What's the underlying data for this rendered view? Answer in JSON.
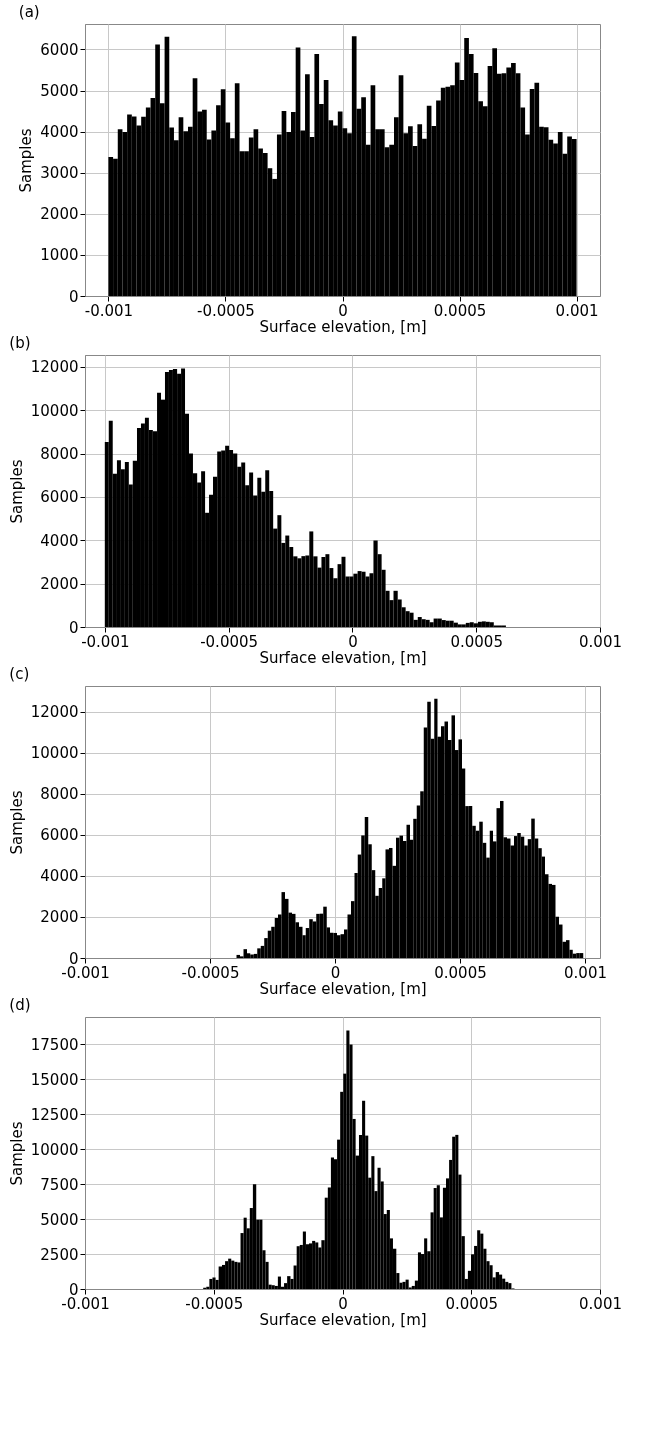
{
  "chart_data": [
    {
      "type": "histogram",
      "title": "(a)",
      "xlabel": "Surface elevation, [m]",
      "ylabel": "Samples",
      "color": "#000000",
      "grid": true,
      "xlim": [
        -0.0011,
        0.0011
      ],
      "xticks": [
        -0.001,
        -0.0005,
        0,
        0.0005,
        0.001
      ],
      "ylim": [
        0,
        6620
      ],
      "yticks": [
        0,
        1000,
        2000,
        3000,
        4000,
        5000,
        6000
      ],
      "bins": [
        -0.001,
        -0.00098,
        -0.00096,
        -0.00094,
        -0.00092,
        -0.0009,
        -0.00088,
        -0.00086,
        -0.00084,
        -0.00082,
        -0.0008,
        -0.00078,
        -0.00076,
        -0.00074,
        -0.00072,
        -0.0007,
        -0.00068,
        -0.00066,
        -0.00064,
        -0.00062,
        -0.0006,
        -0.00058,
        -0.00056,
        -0.00054,
        -0.00052,
        -0.0005,
        -0.00048,
        -0.00046,
        -0.00044,
        -0.00042,
        -0.0004,
        -0.00038,
        -0.00036,
        -0.00034,
        -0.00032,
        -0.0003,
        -0.00028,
        -0.00026,
        -0.00024,
        -0.00022,
        -0.0002,
        -0.00018,
        -0.00016,
        -0.00014,
        -0.00012,
        -0.0001,
        -8e-05,
        -6e-05,
        -4e-05,
        -2e-05,
        0,
        2e-05,
        4e-05,
        6e-05,
        8e-05,
        0.0001,
        0.00012,
        0.00014,
        0.00016,
        0.00018,
        0.0002,
        0.00022,
        0.00024,
        0.00026,
        0.00028,
        0.0003,
        0.00032,
        0.00034,
        0.00036,
        0.00038,
        0.0004,
        0.00042,
        0.00044,
        0.00046,
        0.00048,
        0.0005,
        0.00052,
        0.00054,
        0.00056,
        0.00058,
        0.0006,
        0.00062,
        0.00064,
        0.00066,
        0.00068,
        0.0007,
        0.00072,
        0.00074,
        0.00076,
        0.00078,
        0.0008,
        0.00082,
        0.00084,
        0.00086,
        0.00088,
        0.0009,
        0.00092,
        0.00094,
        0.00096,
        0.00098,
        0.001
      ],
      "values": [
        3380,
        3340,
        4060,
        3990,
        4420,
        4370,
        4150,
        4360,
        4590,
        4820,
        6120,
        4690,
        6310,
        4100,
        3790,
        4350,
        4010,
        4120,
        5300,
        4490,
        4530,
        3810,
        4030,
        4640,
        5030,
        4220,
        3840,
        5180,
        3520,
        3520,
        3860,
        4060,
        3590,
        3480,
        3110,
        2850,
        3930,
        4500,
        3990,
        4480,
        6050,
        4030,
        5400,
        3870,
        5890,
        4670,
        5260,
        4280,
        4150,
        4490,
        4080,
        3960,
        6320,
        4560,
        4840,
        3680,
        5130,
        4060,
        4060,
        3620,
        3680,
        4350,
        5370,
        3960,
        4130,
        3650,
        4180,
        3830,
        4630,
        4140,
        4760,
        5070,
        5090,
        5130,
        5680,
        5260,
        6280,
        5890,
        5430,
        4740,
        4620,
        5600,
        6030,
        5410,
        5420,
        5560,
        5670,
        5420,
        4590,
        3930,
        5040,
        5190,
        4120,
        4110,
        3800,
        3710,
        3990,
        3460,
        3880,
        3820
      ]
    },
    {
      "type": "histogram",
      "title": "(b)",
      "xlabel": "Surface elevation, [m]",
      "ylabel": "Samples",
      "color": "#000000",
      "grid": true,
      "xlim": [
        -0.00108,
        0.001
      ],
      "xticks": [
        -0.001,
        -0.0005,
        0,
        0.0005,
        0.001
      ],
      "ylim": [
        0,
        12550
      ],
      "yticks": [
        0,
        2000,
        4000,
        6000,
        8000,
        10000,
        12000
      ],
      "bins": [
        -0.001,
        -0.000984,
        -0.000968,
        -0.000951,
        -0.000935,
        -0.000919,
        -0.000903,
        -0.000887,
        -0.00087,
        -0.000854,
        -0.000838,
        -0.000822,
        -0.000806,
        -0.000789,
        -0.000773,
        -0.000757,
        -0.000741,
        -0.000725,
        -0.000708,
        -0.000692,
        -0.000676,
        -0.00066,
        -0.000644,
        -0.000627,
        -0.000611,
        -0.000595,
        -0.000579,
        -0.000563,
        -0.000546,
        -0.00053,
        -0.000514,
        -0.000498,
        -0.000482,
        -0.000465,
        -0.000449,
        -0.000433,
        -0.000417,
        -0.000401,
        -0.000384,
        -0.000368,
        -0.000352,
        -0.000336,
        -0.00032,
        -0.000303,
        -0.000287,
        -0.000271,
        -0.000255,
        -0.000239,
        -0.000222,
        -0.000206,
        -0.00019,
        -0.000174,
        -0.000158,
        -0.000141,
        -0.000125,
        -0.000109,
        -9.3e-05,
        -7.7e-05,
        -6e-05,
        -4.4e-05,
        -2.8e-05,
        -1.2e-05,
        4e-06,
        2.1e-05,
        3.7e-05,
        5.3e-05,
        6.9e-05,
        8.5e-05,
        0.000102,
        0.000118,
        0.000134,
        0.00015,
        0.000166,
        0.000183,
        0.000199,
        0.000215,
        0.000231,
        0.000247,
        0.000264,
        0.00028,
        0.000296,
        0.000312,
        0.000328,
        0.000345,
        0.000361,
        0.000377,
        0.000393,
        0.000409,
        0.000426,
        0.000442,
        0.000458,
        0.000474,
        0.00049,
        0.000507,
        0.000523,
        0.000539,
        0.000555,
        0.000571,
        0.000588,
        0.000604,
        0.00062
      ],
      "values": [
        8540,
        9520,
        7070,
        7690,
        7280,
        7610,
        6570,
        7670,
        9180,
        9390,
        9650,
        9090,
        9030,
        10810,
        10490,
        11770,
        11860,
        11900,
        11690,
        11930,
        9840,
        8010,
        7090,
        6670,
        7190,
        5270,
        6100,
        6930,
        8100,
        8140,
        8360,
        8170,
        8010,
        7390,
        7590,
        6540,
        7130,
        6070,
        6890,
        6240,
        7230,
        6270,
        4540,
        5160,
        3880,
        4220,
        3690,
        3260,
        3170,
        3270,
        3300,
        4410,
        3260,
        2740,
        3230,
        3360,
        2720,
        2250,
        2900,
        3240,
        2330,
        2330,
        2460,
        2580,
        2550,
        2330,
        2480,
        3990,
        3360,
        2640,
        1670,
        1240,
        1670,
        1270,
        910,
        730,
        660,
        330,
        460,
        360,
        330,
        220,
        390,
        390,
        320,
        290,
        290,
        200,
        120,
        120,
        190,
        220,
        170,
        240,
        260,
        240,
        220,
        70,
        70,
        70
      ]
    },
    {
      "type": "histogram",
      "title": "(c)",
      "xlabel": "Surface elevation, [m]",
      "ylabel": "Samples",
      "color": "#000000",
      "grid": true,
      "xlim": [
        -0.001,
        0.00106
      ],
      "xticks": [
        -0.001,
        -0.0005,
        0,
        0.0005,
        0.001
      ],
      "ylim": [
        0,
        13250
      ],
      "yticks": [
        0,
        2000,
        4000,
        6000,
        8000,
        10000,
        12000
      ],
      "bins": [
        -0.000394,
        -0.00038,
        -0.000366,
        -0.000352,
        -0.000339,
        -0.000325,
        -0.000311,
        -0.000297,
        -0.000283,
        -0.000269,
        -0.000255,
        -0.000241,
        -0.000228,
        -0.000214,
        -0.0002,
        -0.000186,
        -0.000172,
        -0.000158,
        -0.000144,
        -0.00013,
        -0.000117,
        -0.000103,
        -8.9e-05,
        -7.5e-05,
        -6.1e-05,
        -4.7e-05,
        -3.3e-05,
        -2e-05,
        -6e-06,
        8e-06,
        2.2e-05,
        3.6e-05,
        5e-05,
        6.4e-05,
        7.8e-05,
        9.1e-05,
        0.000105,
        0.000119,
        0.000133,
        0.000147,
        0.000161,
        0.000175,
        0.000189,
        0.000202,
        0.000216,
        0.00023,
        0.000244,
        0.000258,
        0.000272,
        0.000286,
        0.0003,
        0.000313,
        0.000327,
        0.000341,
        0.000355,
        0.000369,
        0.000383,
        0.000397,
        0.00041,
        0.000424,
        0.000438,
        0.000452,
        0.000466,
        0.00048,
        0.000494,
        0.000508,
        0.000521,
        0.000535,
        0.000549,
        0.000563,
        0.000577,
        0.000591,
        0.000605,
        0.000619,
        0.000632,
        0.000646,
        0.00066,
        0.000674,
        0.000688,
        0.000702,
        0.000716,
        0.000729,
        0.000743,
        0.000757,
        0.000771,
        0.000785,
        0.000799,
        0.000813,
        0.000827,
        0.00084,
        0.000854,
        0.000868,
        0.000882,
        0.000896,
        0.00091,
        0.000924,
        0.000938,
        0.000951,
        0.000965,
        0.000979,
        0.000993
      ],
      "values": [
        150,
        80,
        430,
        230,
        170,
        200,
        470,
        590,
        970,
        1330,
        1520,
        1950,
        2120,
        3210,
        2880,
        2210,
        2150,
        1740,
        1520,
        1110,
        1460,
        1890,
        1780,
        2150,
        2160,
        2500,
        1490,
        1230,
        1220,
        1110,
        1160,
        1390,
        2120,
        2770,
        4140,
        5040,
        5970,
        6870,
        5540,
        4280,
        3030,
        3410,
        3880,
        5290,
        5360,
        4490,
        5860,
        5960,
        5700,
        6490,
        5760,
        6780,
        7430,
        8120,
        11230,
        12480,
        10680,
        12630,
        10780,
        11290,
        11520,
        10620,
        11820,
        10130,
        10650,
        9230,
        7400,
        7400,
        6440,
        6200,
        6640,
        5610,
        4890,
        6200,
        5680,
        7300,
        7650,
        5880,
        5820,
        5480,
        5940,
        6090,
        5910,
        5480,
        5790,
        6790,
        5820,
        5350,
        4940,
        4080,
        3610,
        3560,
        2010,
        1630,
        790,
        870,
        400,
        210,
        240,
        240
      ]
    },
    {
      "type": "histogram",
      "title": "(d)",
      "xlabel": "Surface elevation, [m]",
      "ylabel": "Samples",
      "color": "#000000",
      "grid": true,
      "xlim": [
        -0.001,
        0.001
      ],
      "xticks": [
        -0.001,
        -0.0005,
        0,
        0.0005,
        0.001
      ],
      "ylim": [
        0,
        19450
      ],
      "yticks": [
        0,
        2500,
        5000,
        7500,
        10000,
        12500,
        15000,
        17500
      ],
      "bins": [
        -0.000541,
        -0.000529,
        -0.000517,
        -0.000505,
        -0.000493,
        -0.000481,
        -0.000468,
        -0.000456,
        -0.000444,
        -0.000432,
        -0.00042,
        -0.000408,
        -0.000396,
        -0.000384,
        -0.000372,
        -0.00036,
        -0.000348,
        -0.000335,
        -0.000323,
        -0.000311,
        -0.000299,
        -0.000287,
        -0.000275,
        -0.000263,
        -0.000251,
        -0.000239,
        -0.000227,
        -0.000215,
        -0.000202,
        -0.00019,
        -0.000178,
        -0.000166,
        -0.000154,
        -0.000142,
        -0.00013,
        -0.000118,
        -0.000106,
        -9.4e-05,
        -8.2e-05,
        -6.9e-05,
        -5.7e-05,
        -4.5e-05,
        -3.3e-05,
        -2.1e-05,
        -9e-06,
        3e-06,
        1.5e-05,
        2.7e-05,
        3.9e-05,
        5.1e-05,
        6.4e-05,
        7.6e-05,
        8.8e-05,
        0.0001,
        0.000112,
        0.000124,
        0.000136,
        0.000148,
        0.00016,
        0.000172,
        0.000184,
        0.000196,
        0.000209,
        0.000221,
        0.000233,
        0.000245,
        0.000257,
        0.000269,
        0.000281,
        0.000293,
        0.000305,
        0.000317,
        0.000329,
        0.000342,
        0.000354,
        0.000366,
        0.000378,
        0.00039,
        0.000402,
        0.000414,
        0.000426,
        0.000438,
        0.00045,
        0.000462,
        0.000475,
        0.000487,
        0.000499,
        0.000511,
        0.000523,
        0.000535,
        0.000547,
        0.000559,
        0.000571,
        0.000583,
        0.000595,
        0.000608,
        0.00062,
        0.000632,
        0.000644,
        0.000656,
        0.000668
      ],
      "values": [
        90,
        160,
        720,
        830,
        650,
        1610,
        1720,
        1990,
        2170,
        2030,
        1940,
        1900,
        4000,
        5100,
        4340,
        5790,
        7490,
        4960,
        4960,
        2770,
        1940,
        310,
        270,
        220,
        890,
        160,
        420,
        920,
        720,
        1680,
        3060,
        3150,
        4110,
        3200,
        3260,
        3440,
        3330,
        2970,
        3490,
        6530,
        7260,
        9410,
        9280,
        10680,
        14100,
        15400,
        18480,
        17480,
        12160,
        9540,
        11020,
        13460,
        10970,
        7960,
        9500,
        7000,
        8670,
        7690,
        5360,
        5650,
        3620,
        2880,
        1140,
        450,
        510,
        670,
        110,
        220,
        600,
        2620,
        2500,
        3620,
        2700,
        5480,
        7220,
        7420,
        5120,
        7240,
        7910,
        9230,
        10890,
        11020,
        8180,
        3780,
        720,
        1300,
        2480,
        3080,
        4200,
        3960,
        2880,
        1990,
        1700,
        830,
        1210,
        1030,
        740,
        510,
        420,
        40
      ]
    }
  ]
}
